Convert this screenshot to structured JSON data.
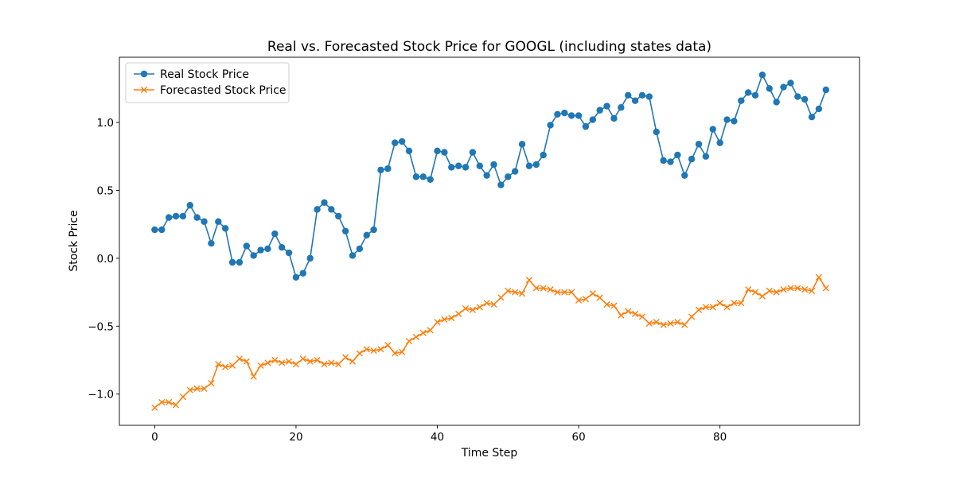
{
  "chart_data": {
    "type": "line",
    "title": "Real vs. Forecasted Stock Price for GOOGL (including states data)",
    "xlabel": "Time Step",
    "ylabel": "Stock Price",
    "xlim": [
      -5,
      99.75
    ],
    "ylim": [
      -1.23,
      1.48
    ],
    "xticks": [
      0,
      20,
      40,
      60,
      80
    ],
    "xtick_labels": [
      "0",
      "20",
      "40",
      "60",
      "80"
    ],
    "yticks": [
      -1.0,
      -0.5,
      0.0,
      0.5,
      1.0
    ],
    "ytick_labels": [
      "−1.0",
      "−0.5",
      "0.0",
      "0.5",
      "1.0"
    ],
    "grid": false,
    "legend_position": "upper-left",
    "x": [
      0,
      1,
      2,
      3,
      4,
      5,
      6,
      7,
      8,
      9,
      10,
      11,
      12,
      13,
      14,
      15,
      16,
      17,
      18,
      19,
      20,
      21,
      22,
      23,
      24,
      25,
      26,
      27,
      28,
      29,
      30,
      31,
      32,
      33,
      34,
      35,
      36,
      37,
      38,
      39,
      40,
      41,
      42,
      43,
      44,
      45,
      46,
      47,
      48,
      49,
      50,
      51,
      52,
      53,
      54,
      55,
      56,
      57,
      58,
      59,
      60,
      61,
      62,
      63,
      64,
      65,
      66,
      67,
      68,
      69,
      70,
      71,
      72,
      73,
      74,
      75,
      76,
      77,
      78,
      79,
      80,
      81,
      82,
      83,
      84,
      85,
      86,
      87,
      88,
      89,
      90,
      91,
      92,
      93,
      94,
      95
    ],
    "series": [
      {
        "name": "Real Stock Price",
        "color": "#1f77b4",
        "marker": "o",
        "values": [
          0.21,
          0.21,
          0.3,
          0.31,
          0.31,
          0.39,
          0.3,
          0.27,
          0.11,
          0.27,
          0.22,
          -0.03,
          -0.03,
          0.09,
          0.02,
          0.06,
          0.07,
          0.18,
          0.08,
          0.04,
          -0.14,
          -0.11,
          0.0,
          0.36,
          0.41,
          0.36,
          0.31,
          0.2,
          0.02,
          0.07,
          0.17,
          0.21,
          0.65,
          0.66,
          0.85,
          0.86,
          0.79,
          0.6,
          0.6,
          0.58,
          0.79,
          0.78,
          0.67,
          0.68,
          0.67,
          0.78,
          0.68,
          0.61,
          0.69,
          0.54,
          0.6,
          0.64,
          0.84,
          0.68,
          0.69,
          0.76,
          0.98,
          1.06,
          1.07,
          1.05,
          1.05,
          0.97,
          1.02,
          1.09,
          1.12,
          1.03,
          1.11,
          1.2,
          1.16,
          1.2,
          1.19,
          0.93,
          0.72,
          0.71,
          0.76,
          0.61,
          0.73,
          0.84,
          0.75,
          0.95,
          0.85,
          1.02,
          1.01,
          1.16,
          1.22,
          1.2,
          1.35,
          1.25,
          1.15,
          1.26,
          1.29,
          1.19,
          1.17,
          1.04,
          1.1,
          1.24
        ]
      },
      {
        "name": "Forecasted Stock Price",
        "color": "#ff7f0e",
        "marker": "x",
        "values": [
          -1.1,
          -1.06,
          -1.06,
          -1.08,
          -1.02,
          -0.97,
          -0.96,
          -0.96,
          -0.92,
          -0.78,
          -0.8,
          -0.79,
          -0.74,
          -0.76,
          -0.87,
          -0.79,
          -0.77,
          -0.75,
          -0.77,
          -0.76,
          -0.78,
          -0.74,
          -0.76,
          -0.75,
          -0.78,
          -0.77,
          -0.78,
          -0.73,
          -0.76,
          -0.7,
          -0.67,
          -0.68,
          -0.67,
          -0.64,
          -0.7,
          -0.69,
          -0.61,
          -0.58,
          -0.55,
          -0.53,
          -0.47,
          -0.45,
          -0.44,
          -0.41,
          -0.37,
          -0.38,
          -0.36,
          -0.33,
          -0.34,
          -0.29,
          -0.24,
          -0.25,
          -0.26,
          -0.16,
          -0.22,
          -0.22,
          -0.23,
          -0.25,
          -0.25,
          -0.25,
          -0.31,
          -0.3,
          -0.26,
          -0.29,
          -0.34,
          -0.35,
          -0.42,
          -0.39,
          -0.41,
          -0.43,
          -0.48,
          -0.47,
          -0.49,
          -0.48,
          -0.47,
          -0.49,
          -0.43,
          -0.38,
          -0.36,
          -0.36,
          -0.33,
          -0.36,
          -0.33,
          -0.33,
          -0.23,
          -0.25,
          -0.28,
          -0.24,
          -0.25,
          -0.23,
          -0.22,
          -0.22,
          -0.23,
          -0.24,
          -0.14,
          -0.22
        ]
      }
    ]
  }
}
